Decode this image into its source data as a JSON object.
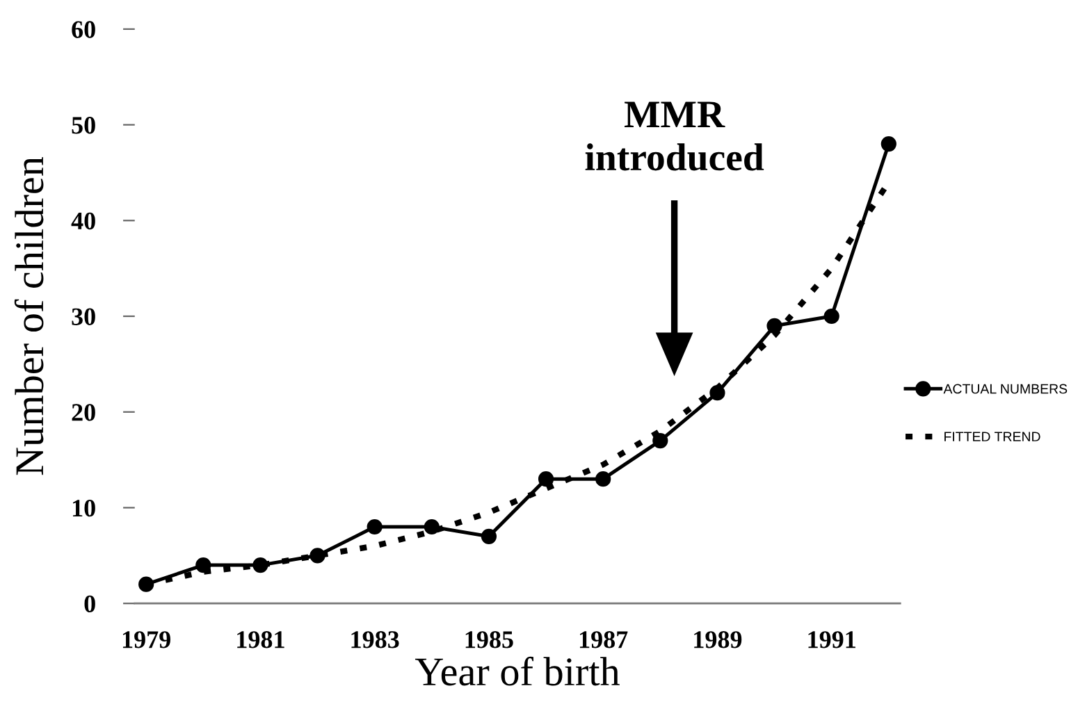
{
  "chart_data": {
    "type": "line",
    "xlabel": "Year of birth",
    "ylabel": "Number of children",
    "x": [
      1979,
      1980,
      1981,
      1982,
      1983,
      1984,
      1985,
      1986,
      1987,
      1988,
      1989,
      1990,
      1991,
      1992
    ],
    "series": [
      {
        "name": "ACTUAL NUMBERS",
        "color": "#000000",
        "values": [
          2,
          4,
          4,
          5,
          8,
          8,
          7,
          13,
          13,
          17,
          22,
          29,
          30,
          48
        ],
        "marker": "circle",
        "line_style": "solid"
      },
      {
        "name": "FITTED TREND",
        "color": "#000000",
        "values": [
          2,
          3.3,
          4,
          5,
          6,
          7.5,
          9.5,
          12,
          14.5,
          18,
          22.5,
          28,
          35,
          44
        ],
        "marker": "none",
        "line_style": "dotted"
      }
    ],
    "xlim": [
      1978.8,
      1992.2
    ],
    "xticks": [
      1979,
      1981,
      1983,
      1985,
      1987,
      1989,
      1991
    ],
    "ylim": [
      0,
      60
    ],
    "yticks": [
      0,
      10,
      20,
      30,
      40,
      50,
      60
    ],
    "annotations": [
      "MMR\nintroduced"
    ],
    "grid": false,
    "legend": "right"
  }
}
